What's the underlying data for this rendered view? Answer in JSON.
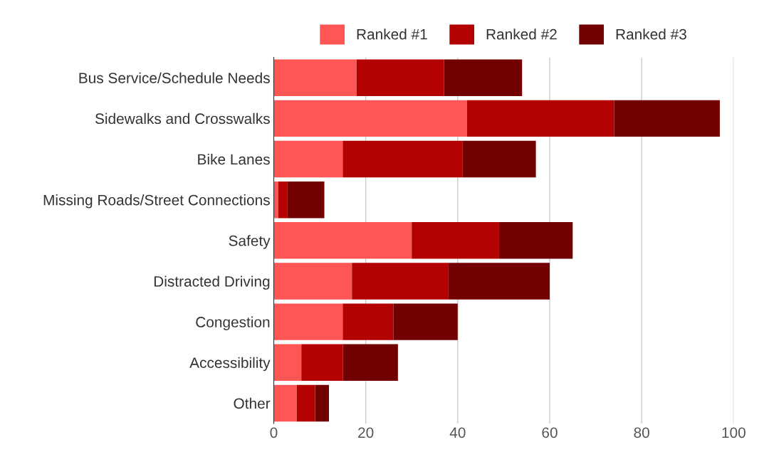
{
  "chart_data": {
    "type": "bar",
    "orientation": "horizontal",
    "stacked": true,
    "categories": [
      "Bus Service/Schedule Needs",
      "Sidewalks and Crosswalks",
      "Bike Lanes",
      "Missing Roads/Street Connections",
      "Safety",
      "Distracted Driving",
      "Congestion",
      "Accessibility",
      "Other"
    ],
    "series": [
      {
        "name": "Ranked #1",
        "color": "#ff5555",
        "values": [
          18,
          42,
          15,
          1,
          30,
          17,
          15,
          6,
          5
        ]
      },
      {
        "name": "Ranked #2",
        "color": "#b30000",
        "values": [
          19,
          32,
          26,
          2,
          19,
          21,
          11,
          9,
          4
        ]
      },
      {
        "name": "Ranked #3",
        "color": "#730000",
        "values": [
          17,
          23,
          16,
          8,
          16,
          22,
          14,
          12,
          3
        ]
      }
    ],
    "xlim": [
      0,
      100
    ],
    "xticks": [
      0,
      20,
      40,
      60,
      80,
      100
    ],
    "grid": "x",
    "legend": "top"
  }
}
